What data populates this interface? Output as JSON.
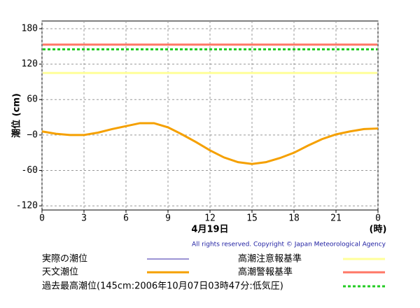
{
  "chart_data": {
    "type": "line",
    "y_label": "潮位 (cm)",
    "x_label": "4月19日",
    "x_unit": "(時)",
    "copyright": "All rights reserved. Copyright © Japan Meteorological Agency",
    "x": [
      0,
      1,
      2,
      3,
      4,
      5,
      6,
      7,
      8,
      9,
      10,
      11,
      12,
      13,
      14,
      15,
      16,
      17,
      18,
      19,
      20,
      21,
      22,
      23,
      24
    ],
    "series": [
      {
        "name": "実際の潮位",
        "color": "#3a2aa8",
        "width": 1,
        "values": [
          null,
          null,
          null,
          null,
          null,
          null,
          null,
          null,
          null,
          null,
          null,
          null,
          null,
          null,
          null,
          null,
          null,
          null,
          null,
          null,
          null,
          null,
          null,
          null,
          null
        ]
      },
      {
        "name": "天文潮位",
        "color": "#f5a000",
        "width": 3,
        "values": [
          6,
          2,
          0,
          0,
          4,
          10,
          15,
          20,
          20,
          13,
          1,
          -12,
          -26,
          -38,
          -46,
          -49,
          -46,
          -39,
          -30,
          -18,
          -7,
          1,
          6,
          10,
          11
        ]
      }
    ],
    "hlines": [
      {
        "name": "高潮注意報基準",
        "color": "#ffff99",
        "value": 105,
        "dashed": false
      },
      {
        "name": "高潮警報基準",
        "color": "#ff7766",
        "value": 153,
        "dashed": false
      },
      {
        "name": "過去最高潮位(145cm:2006年10月07日03時47分:低気圧)",
        "color": "#22cc22",
        "value": 145,
        "dashed": true
      }
    ],
    "xlim": [
      0,
      24
    ],
    "xticks": [
      0,
      3,
      6,
      9,
      12,
      15,
      18,
      21,
      {
        "value": 24,
        "label": "0"
      }
    ],
    "ylim": [
      -127,
      193
    ],
    "yticks": [
      180,
      120,
      60,
      {
        "value": 0,
        "label": "−0"
      },
      -60,
      -120
    ],
    "grid": true
  }
}
